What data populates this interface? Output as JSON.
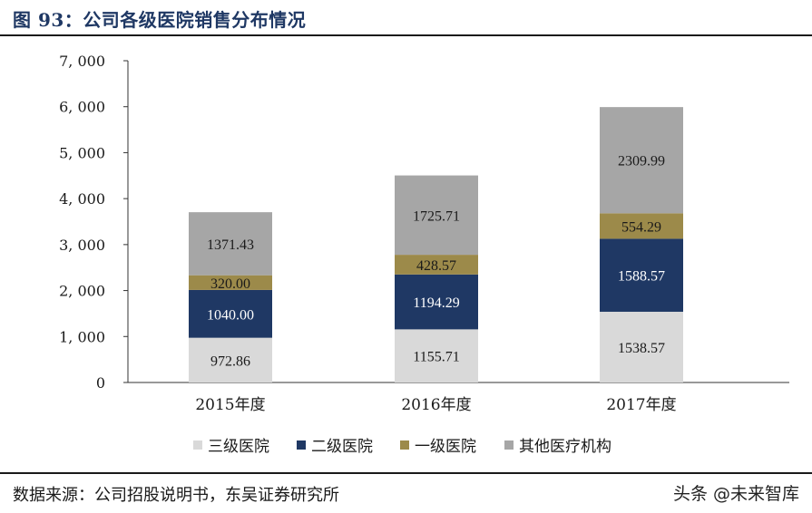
{
  "header": {
    "title": "图 93：公司各级医院销售分布情况"
  },
  "footer": {
    "source": "数据来源：公司招股说明书，东吴证券研究所",
    "watermark": "头条 @未来智库"
  },
  "chart_data": {
    "type": "bar",
    "stacked": true,
    "categories": [
      "2015年度",
      "2016年度",
      "2017年度"
    ],
    "series": [
      {
        "name": "三级医院",
        "values": [
          972.86,
          1155.71,
          1538.57
        ],
        "color": "#d9d9d9",
        "label_color": "#1a1a1a"
      },
      {
        "name": "二级医院",
        "values": [
          1040.0,
          1194.29,
          1588.57
        ],
        "color": "#1f3864",
        "label_color": "#ffffff"
      },
      {
        "name": "一级医院",
        "values": [
          320.0,
          428.57,
          554.29
        ],
        "color": "#9c8a4a",
        "label_color": "#1a1a1a"
      },
      {
        "name": "其他医疗机构",
        "values": [
          1371.43,
          1725.71,
          2309.99
        ],
        "color": "#a6a6a6",
        "label_color": "#1a1a1a"
      }
    ],
    "data_labels": [
      [
        "972.86",
        "1155.71",
        "1538.57"
      ],
      [
        "1040.00",
        "1194.29",
        "1588.57"
      ],
      [
        "320.00",
        "428.57",
        "554.29"
      ],
      [
        "1371.43",
        "1725.71",
        "2309.99"
      ]
    ],
    "ylim": [
      0,
      7000
    ],
    "yticks": [
      0,
      1000,
      2000,
      3000,
      4000,
      5000,
      6000,
      7000
    ],
    "ytick_labels": [
      "0",
      "1, 000",
      "2, 000",
      "3, 000",
      "4, 000",
      "5, 000",
      "6, 000",
      "7, 000"
    ],
    "grid": false,
    "legend_position": "bottom"
  }
}
